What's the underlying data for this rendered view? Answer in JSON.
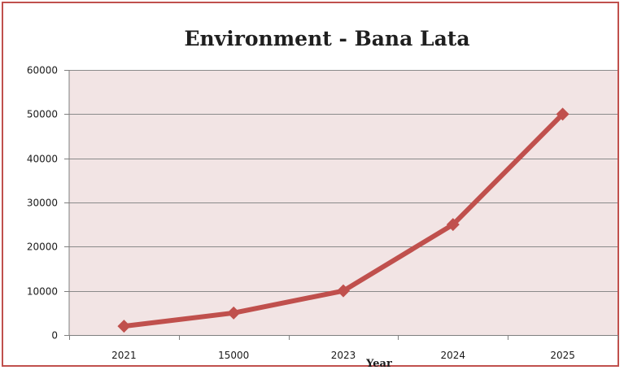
{
  "chart_data": {
    "type": "line",
    "title": "Environment - Bana Lata",
    "xlabel": "Year",
    "ylabel": "",
    "categories": [
      "2021",
      "15000",
      "2023",
      "2024",
      "2025"
    ],
    "values": [
      2000,
      5000,
      10000,
      25000,
      50000
    ],
    "yticks": [
      "0",
      "10000",
      "20000",
      "30000",
      "40000",
      "50000",
      "60000"
    ],
    "ylim": [
      0,
      60000
    ],
    "grid": true,
    "legend": "none",
    "colors": {
      "series": "#c0504d",
      "plot_background": "#f2e4e4",
      "gridline": "#8a8a8a",
      "frame": "#c0504d"
    }
  }
}
